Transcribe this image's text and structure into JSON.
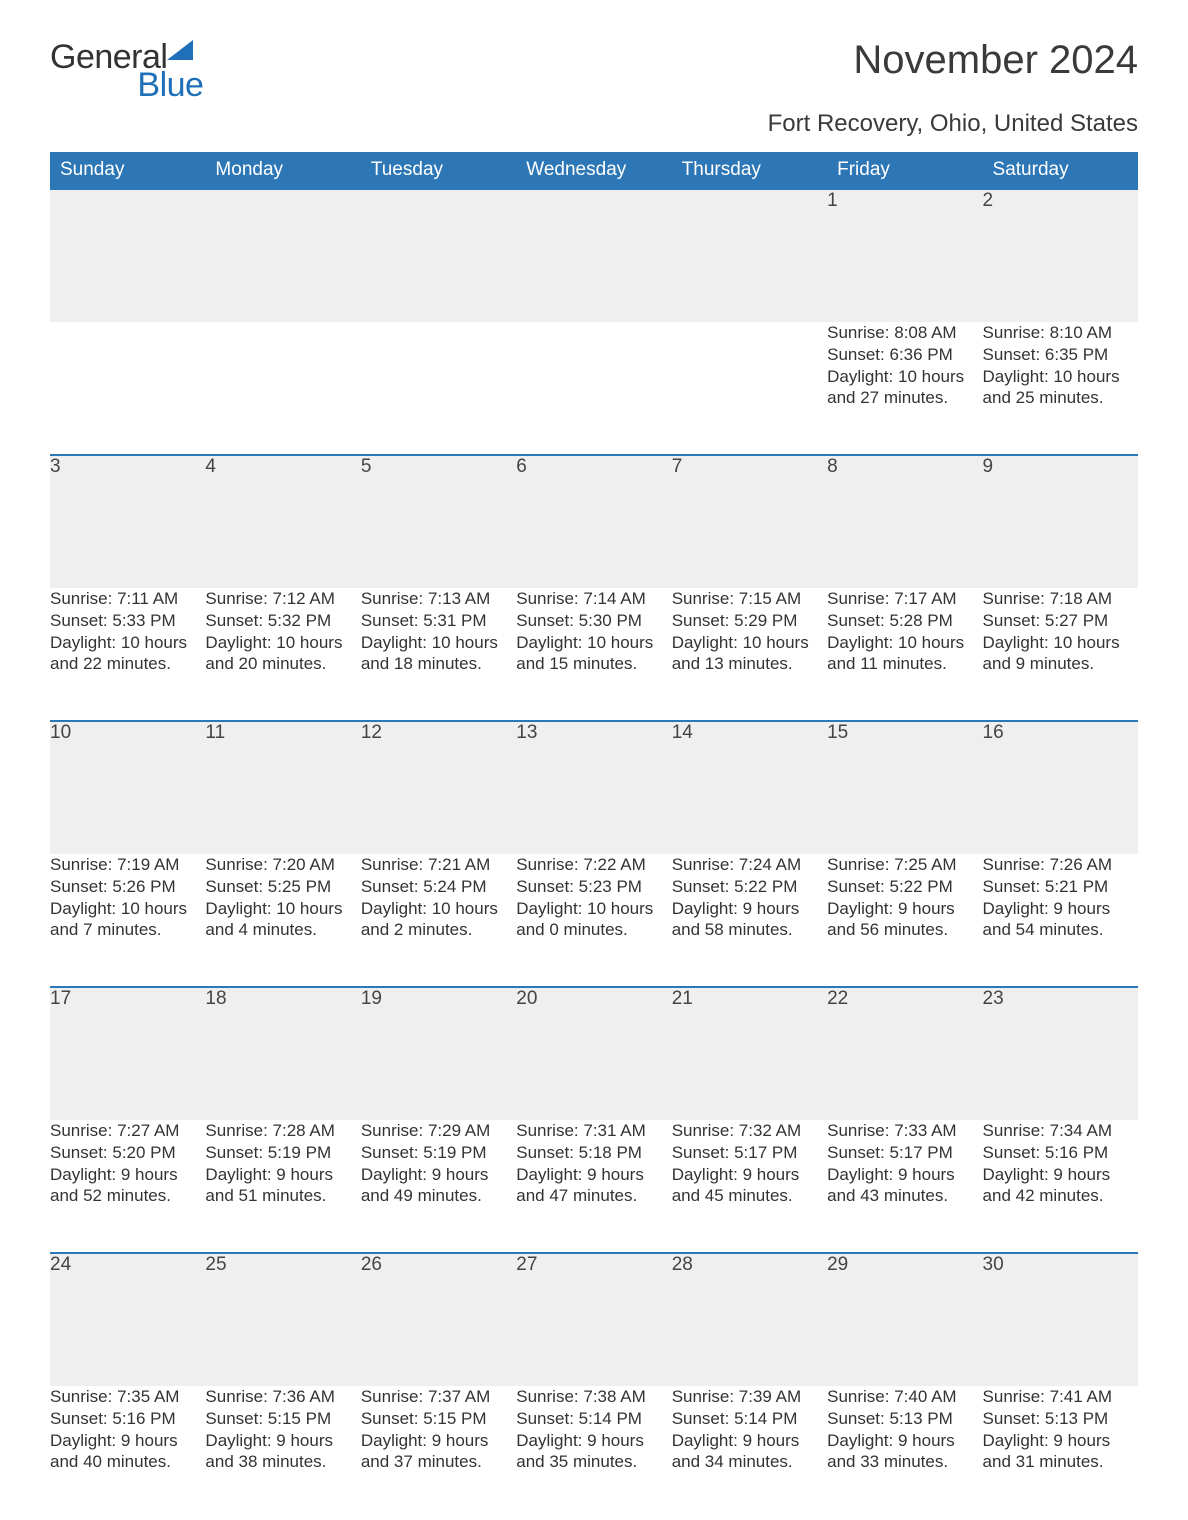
{
  "logo": {
    "word1": "General",
    "word2": "Blue",
    "text_color": "#333333",
    "accent_color": "#1f70b8"
  },
  "title": "November 2024",
  "location": "Fort Recovery, Ohio, United States",
  "colors": {
    "header_bg": "#2d77b6",
    "header_text": "#ffffff",
    "row_border": "#2d77b6",
    "daynum_bg": "#efefef",
    "page_bg": "#ffffff",
    "body_text": "#333333"
  },
  "typography": {
    "title_fontsize": 40,
    "subtitle_fontsize": 24,
    "dayheader_fontsize": 19,
    "daynum_fontsize": 19,
    "details_fontsize": 17,
    "logo_fontsize": 34
  },
  "day_headers": [
    "Sunday",
    "Monday",
    "Tuesday",
    "Wednesday",
    "Thursday",
    "Friday",
    "Saturday"
  ],
  "weeks": [
    [
      null,
      null,
      null,
      null,
      null,
      {
        "n": "1",
        "sunrise": "8:08 AM",
        "sunset": "6:36 PM",
        "daylight": "10 hours and 27 minutes."
      },
      {
        "n": "2",
        "sunrise": "8:10 AM",
        "sunset": "6:35 PM",
        "daylight": "10 hours and 25 minutes."
      }
    ],
    [
      {
        "n": "3",
        "sunrise": "7:11 AM",
        "sunset": "5:33 PM",
        "daylight": "10 hours and 22 minutes."
      },
      {
        "n": "4",
        "sunrise": "7:12 AM",
        "sunset": "5:32 PM",
        "daylight": "10 hours and 20 minutes."
      },
      {
        "n": "5",
        "sunrise": "7:13 AM",
        "sunset": "5:31 PM",
        "daylight": "10 hours and 18 minutes."
      },
      {
        "n": "6",
        "sunrise": "7:14 AM",
        "sunset": "5:30 PM",
        "daylight": "10 hours and 15 minutes."
      },
      {
        "n": "7",
        "sunrise": "7:15 AM",
        "sunset": "5:29 PM",
        "daylight": "10 hours and 13 minutes."
      },
      {
        "n": "8",
        "sunrise": "7:17 AM",
        "sunset": "5:28 PM",
        "daylight": "10 hours and 11 minutes."
      },
      {
        "n": "9",
        "sunrise": "7:18 AM",
        "sunset": "5:27 PM",
        "daylight": "10 hours and 9 minutes."
      }
    ],
    [
      {
        "n": "10",
        "sunrise": "7:19 AM",
        "sunset": "5:26 PM",
        "daylight": "10 hours and 7 minutes."
      },
      {
        "n": "11",
        "sunrise": "7:20 AM",
        "sunset": "5:25 PM",
        "daylight": "10 hours and 4 minutes."
      },
      {
        "n": "12",
        "sunrise": "7:21 AM",
        "sunset": "5:24 PM",
        "daylight": "10 hours and 2 minutes."
      },
      {
        "n": "13",
        "sunrise": "7:22 AM",
        "sunset": "5:23 PM",
        "daylight": "10 hours and 0 minutes."
      },
      {
        "n": "14",
        "sunrise": "7:24 AM",
        "sunset": "5:22 PM",
        "daylight": "9 hours and 58 minutes."
      },
      {
        "n": "15",
        "sunrise": "7:25 AM",
        "sunset": "5:22 PM",
        "daylight": "9 hours and 56 minutes."
      },
      {
        "n": "16",
        "sunrise": "7:26 AM",
        "sunset": "5:21 PM",
        "daylight": "9 hours and 54 minutes."
      }
    ],
    [
      {
        "n": "17",
        "sunrise": "7:27 AM",
        "sunset": "5:20 PM",
        "daylight": "9 hours and 52 minutes."
      },
      {
        "n": "18",
        "sunrise": "7:28 AM",
        "sunset": "5:19 PM",
        "daylight": "9 hours and 51 minutes."
      },
      {
        "n": "19",
        "sunrise": "7:29 AM",
        "sunset": "5:19 PM",
        "daylight": "9 hours and 49 minutes."
      },
      {
        "n": "20",
        "sunrise": "7:31 AM",
        "sunset": "5:18 PM",
        "daylight": "9 hours and 47 minutes."
      },
      {
        "n": "21",
        "sunrise": "7:32 AM",
        "sunset": "5:17 PM",
        "daylight": "9 hours and 45 minutes."
      },
      {
        "n": "22",
        "sunrise": "7:33 AM",
        "sunset": "5:17 PM",
        "daylight": "9 hours and 43 minutes."
      },
      {
        "n": "23",
        "sunrise": "7:34 AM",
        "sunset": "5:16 PM",
        "daylight": "9 hours and 42 minutes."
      }
    ],
    [
      {
        "n": "24",
        "sunrise": "7:35 AM",
        "sunset": "5:16 PM",
        "daylight": "9 hours and 40 minutes."
      },
      {
        "n": "25",
        "sunrise": "7:36 AM",
        "sunset": "5:15 PM",
        "daylight": "9 hours and 38 minutes."
      },
      {
        "n": "26",
        "sunrise": "7:37 AM",
        "sunset": "5:15 PM",
        "daylight": "9 hours and 37 minutes."
      },
      {
        "n": "27",
        "sunrise": "7:38 AM",
        "sunset": "5:14 PM",
        "daylight": "9 hours and 35 minutes."
      },
      {
        "n": "28",
        "sunrise": "7:39 AM",
        "sunset": "5:14 PM",
        "daylight": "9 hours and 34 minutes."
      },
      {
        "n": "29",
        "sunrise": "7:40 AM",
        "sunset": "5:13 PM",
        "daylight": "9 hours and 33 minutes."
      },
      {
        "n": "30",
        "sunrise": "7:41 AM",
        "sunset": "5:13 PM",
        "daylight": "9 hours and 31 minutes."
      }
    ]
  ],
  "labels": {
    "sunrise": "Sunrise: ",
    "sunset": "Sunset: ",
    "daylight": "Daylight: "
  }
}
